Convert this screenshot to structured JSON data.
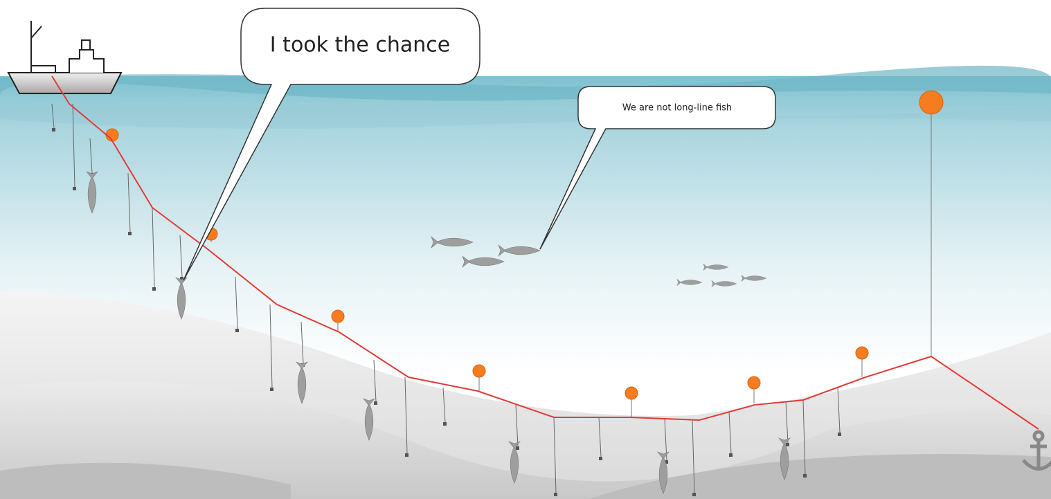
{
  "bubbles": [
    {
      "text": "I took the chance"
    },
    {
      "text": "We are not long-line fish"
    }
  ]
}
